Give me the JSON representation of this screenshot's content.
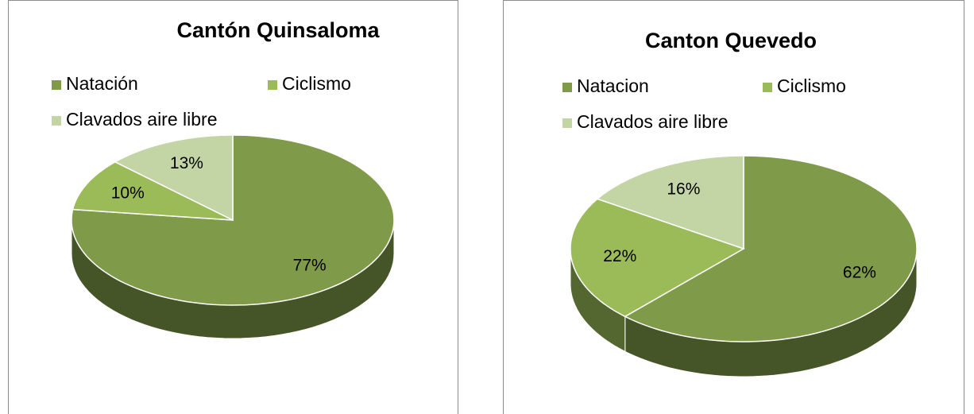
{
  "chart_data": [
    {
      "type": "pie",
      "title": "Cantón Quinsaloma",
      "categories": [
        "Natación",
        "Ciclismo",
        "Clavados aire libre"
      ],
      "values": [
        77,
        10,
        13
      ],
      "value_labels": [
        "77%",
        "10%",
        "13%"
      ],
      "colors": [
        "#7f9a48",
        "#9bbb59",
        "#c3d5a5"
      ]
    },
    {
      "type": "pie",
      "title": "Canton Quevedo",
      "categories": [
        "Natacion",
        "Ciclismo",
        "Clavados aire libre"
      ],
      "values": [
        62,
        22,
        16
      ],
      "value_labels": [
        "62%",
        "22%",
        "16%"
      ],
      "colors": [
        "#7f9a48",
        "#9bbb59",
        "#c3d5a5"
      ]
    }
  ]
}
